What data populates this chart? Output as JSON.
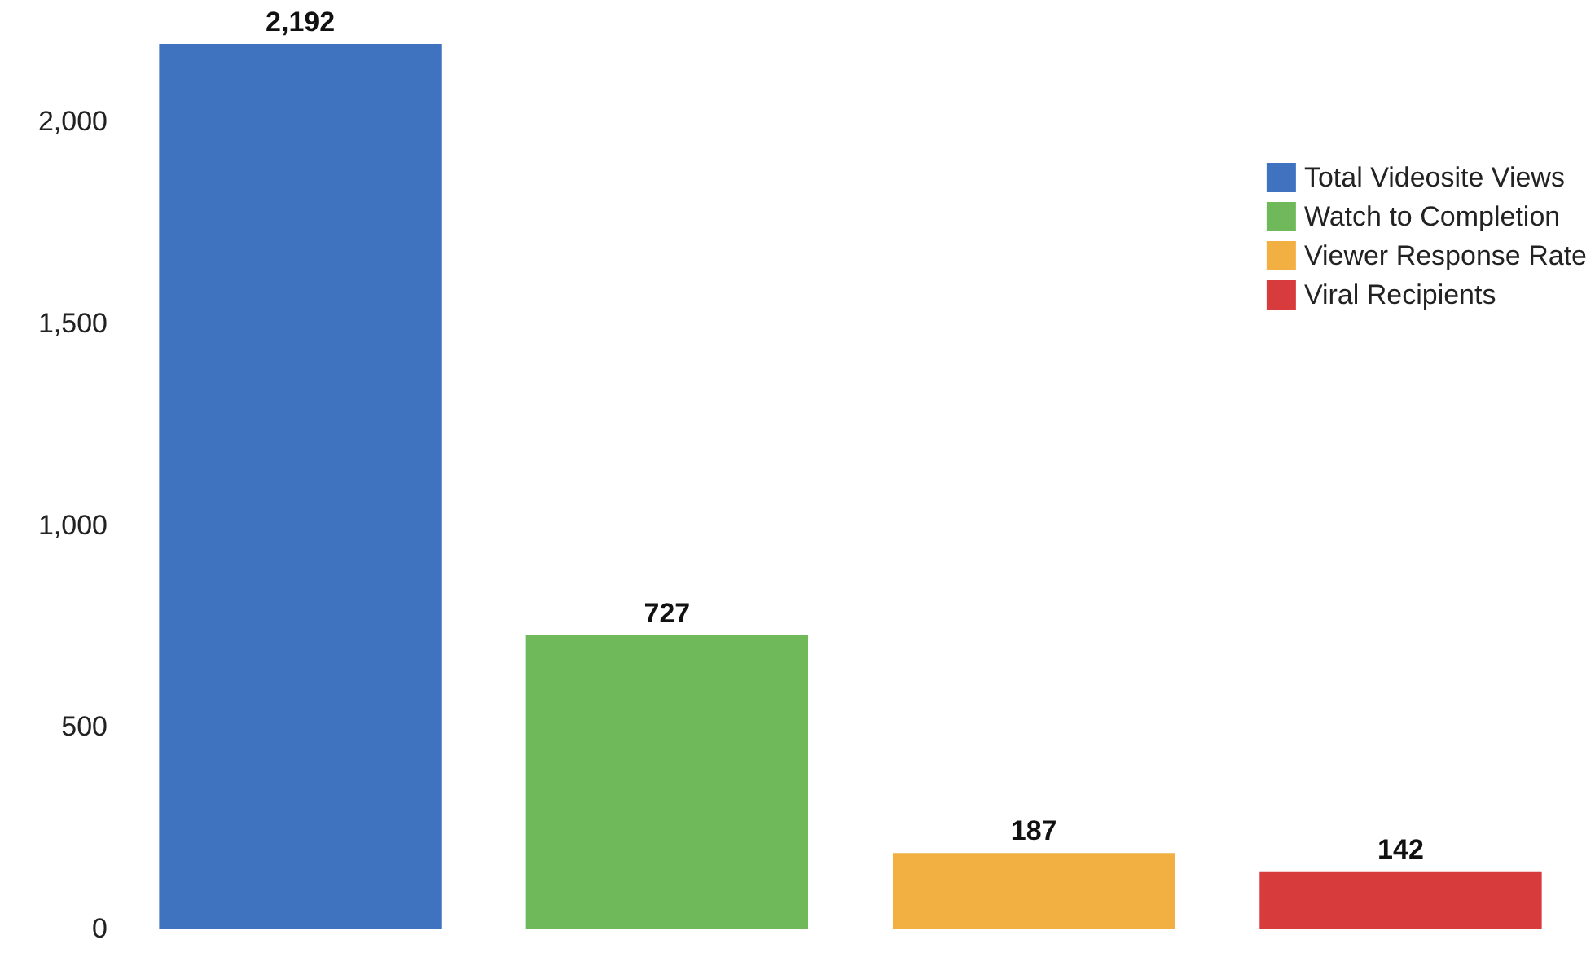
{
  "chart_data": {
    "type": "bar",
    "categories": [
      null
    ],
    "series": [
      {
        "name": "Total Videosite Views",
        "color": "#3f73c0",
        "values": [
          2192
        ],
        "value_labels": [
          "2,192"
        ]
      },
      {
        "name": "Watch to Completion",
        "color": "#70b95a",
        "values": [
          727
        ],
        "value_labels": [
          "727"
        ]
      },
      {
        "name": "Viewer Response Rate",
        "color": "#f3b042",
        "values": [
          187
        ],
        "value_labels": [
          "187"
        ]
      },
      {
        "name": "Viral Recipients",
        "color": "#d83b3b",
        "values": [
          142
        ],
        "value_labels": [
          "142"
        ]
      }
    ],
    "ylim": [
      0,
      2200
    ],
    "yticks": [
      {
        "value": 0,
        "label": "0"
      },
      {
        "value": 500,
        "label": "500"
      },
      {
        "value": 1000,
        "label": "1,000"
      },
      {
        "value": 1500,
        "label": "1,500"
      },
      {
        "value": 2000,
        "label": "2,000"
      }
    ],
    "grid": false,
    "legend": "top right",
    "tick_labels": "y"
  }
}
